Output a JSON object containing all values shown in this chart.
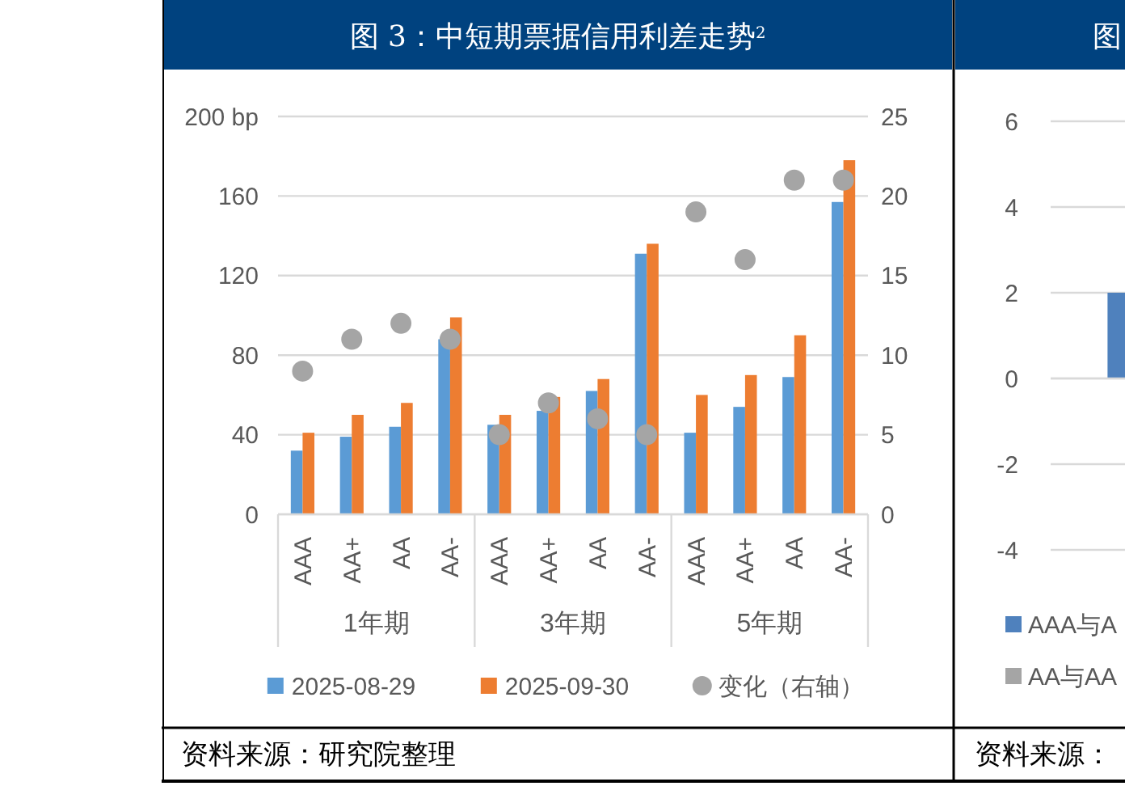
{
  "chart_data": [
    {
      "type": "bar",
      "title": "图 3：中短期票据信用利差走势$^{2}$",
      "categories": [
        "AAA",
        "AA+",
        "AA",
        "AA-",
        "AAA",
        "AA+",
        "AA",
        "AA-",
        "AAA",
        "AA+",
        "AA",
        "AA-"
      ],
      "series": [
        {
          "name": "2025-08-29",
          "color": "#5b9bd5",
          "values": [
            32,
            39,
            44,
            88,
            45,
            52,
            62,
            131,
            41,
            54,
            69,
            157
          ]
        },
        {
          "name": "2025-09-30",
          "color": "#ed7d31",
          "values": [
            41,
            50,
            56,
            99,
            50,
            59,
            68,
            136,
            60,
            70,
            90,
            178
          ]
        },
        {
          "name": "变化（右轴）",
          "type": "scatter",
          "axis": "y2",
          "color": "#a5a5a5",
          "values": [
            9,
            11,
            12,
            11,
            5,
            7,
            6,
            5,
            19,
            16,
            21,
            21
          ]
        }
      ],
      "ylim": [
        0,
        200
      ],
      "yticks": [
        0,
        40,
        80,
        120,
        160,
        {
          "value": 200,
          "label": "200 bp"
        }
      ],
      "y2lim": [
        0,
        25
      ],
      "y2ticks": [
        0,
        5,
        10,
        15,
        20,
        25
      ],
      "grid": "y",
      "legend": "bottom",
      "marker": "circle",
      "annotations": [
        "1年期",
        "3年期",
        "5年期",
        "资料来源：研究院整理"
      ]
    },
    {
      "type": "bar",
      "title": "图",
      "categories": [
        null
      ],
      "series": [
        {
          "name": "AAA与A",
          "color": "#4f81bd",
          "values": [
            2
          ]
        },
        {
          "name": "AA与AA",
          "color": "#a5a5a5",
          "values": [
            null
          ]
        }
      ],
      "ylim": [
        -4,
        6
      ],
      "yticks": [
        -4,
        -2,
        0,
        2,
        4,
        6
      ],
      "grid": "y",
      "legend": "bottom left",
      "annotations": [
        "资料来源："
      ]
    }
  ]
}
